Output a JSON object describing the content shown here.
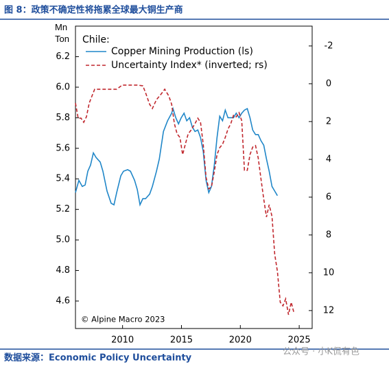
{
  "chart_data": {
    "type": "line",
    "title": "图 8：政策不确定性将拖累全球最大铜生产商",
    "source": "数据来源：Economic Policy Uncertainty",
    "watermark": "公众号 · 小K侃有色",
    "legend_title": "Chile:",
    "annotation": "© Alpine Macro 2023",
    "ylabel": "Mn Ton",
    "xlim": [
      2006,
      2026.1
    ],
    "xticks": [
      2010,
      2015,
      2020,
      2025
    ],
    "ylim": [
      4.42,
      6.4
    ],
    "yticks": [
      4.6,
      4.8,
      {
        "value": 5,
        "label": "5.0"
      },
      5.2,
      5.4,
      5.6,
      5.8,
      {
        "value": 6,
        "label": "6.0"
      },
      6.2
    ],
    "y2lim": [
      12.95,
      -3.05
    ],
    "y2ticks": [
      -2,
      0,
      2,
      4,
      6,
      8,
      10,
      12
    ],
    "series": [
      {
        "name": "Copper Mining Production (ls)",
        "color": "#1f86c8",
        "dash": "solid",
        "x": [
          2006,
          2006.29,
          2006.58,
          2006.82,
          2007.05,
          2007.28,
          2007.52,
          2007.75,
          2008.1,
          2008.33,
          2008.68,
          2009.03,
          2009.27,
          2009.5,
          2009.85,
          2010.08,
          2010.43,
          2010.67,
          2011.02,
          2011.25,
          2011.48,
          2011.72,
          2011.95,
          2012.3,
          2012.53,
          2012.88,
          2013.12,
          2013.47,
          2013.82,
          2014.17,
          2014.28,
          2014.52,
          2014.75,
          2014.98,
          2015.22,
          2015.45,
          2015.69,
          2015.92,
          2016.15,
          2016.39,
          2016.62,
          2016.85,
          2017.09,
          2017.32,
          2017.55,
          2017.79,
          2018.02,
          2018.25,
          2018.49,
          2018.72,
          2018.95,
          2019.19,
          2019.42,
          2019.65,
          2019.89,
          2020.12,
          2020.35,
          2020.59,
          2020.82,
          2021.05,
          2021.29,
          2021.52,
          2021.75,
          2021.99,
          2022.22,
          2022.45,
          2022.69,
          2022.92,
          2023.15
        ],
        "values": [
          5.31,
          5.39,
          5.35,
          5.36,
          5.45,
          5.49,
          5.57,
          5.54,
          5.51,
          5.45,
          5.32,
          5.24,
          5.23,
          5.31,
          5.42,
          5.45,
          5.46,
          5.45,
          5.39,
          5.33,
          5.23,
          5.27,
          5.27,
          5.3,
          5.35,
          5.45,
          5.53,
          5.71,
          5.78,
          5.83,
          5.86,
          5.8,
          5.76,
          5.8,
          5.83,
          5.78,
          5.8,
          5.74,
          5.71,
          5.72,
          5.67,
          5.58,
          5.39,
          5.31,
          5.35,
          5.49,
          5.67,
          5.81,
          5.78,
          5.85,
          5.8,
          5.8,
          5.8,
          5.83,
          5.8,
          5.83,
          5.85,
          5.86,
          5.8,
          5.72,
          5.69,
          5.69,
          5.65,
          5.62,
          5.53,
          5.45,
          5.35,
          5.32,
          5.29
        ]
      },
      {
        "name": "Uncertainty Index* (inverted; rs)",
        "color": "#c0272d",
        "dash": "dashed",
        "axis": "y2",
        "x": [
          2006,
          2006.23,
          2006.47,
          2006.7,
          2006.93,
          2007.17,
          2007.4,
          2007.63,
          2008.04,
          2008.92,
          2009.5,
          2009.97,
          2010.67,
          2011.25,
          2011.72,
          2011.95,
          2012.3,
          2012.53,
          2012.88,
          2013.23,
          2013.58,
          2013.93,
          2014.17,
          2014.4,
          2014.63,
          2014.87,
          2015.1,
          2015.33,
          2015.57,
          2015.8,
          2016.15,
          2016.39,
          2016.62,
          2016.85,
          2017.09,
          2017.32,
          2017.55,
          2017.79,
          2018.02,
          2018.25,
          2018.49,
          2018.72,
          2018.95,
          2019.19,
          2019.42,
          2019.65,
          2019.89,
          2020.12,
          2020.35,
          2020.59,
          2020.82,
          2021.05,
          2021.29,
          2021.52,
          2021.75,
          2021.99,
          2022.22,
          2022.45,
          2022.69,
          2022.92,
          2023.15,
          2023.39,
          2023.62,
          2023.85,
          2024.09,
          2024.32,
          2024.55
        ],
        "values": [
          1.02,
          1.82,
          1.82,
          2.04,
          1.75,
          1.02,
          0.65,
          0.29,
          0.29,
          0.29,
          0.29,
          0.07,
          0.07,
          0.07,
          0.11,
          0.47,
          1.09,
          1.31,
          0.84,
          0.58,
          0.29,
          0.65,
          1.09,
          2.11,
          2.65,
          2.84,
          3.75,
          3.2,
          2.65,
          2.47,
          2.11,
          1.82,
          2.04,
          3.2,
          4.95,
          5.56,
          5.45,
          4.65,
          3.75,
          3.38,
          3.2,
          2.84,
          2.4,
          2.11,
          1.67,
          1.75,
          1.53,
          1.96,
          4.58,
          4.58,
          3.75,
          3.35,
          3.27,
          3.93,
          5.02,
          6.11,
          7.05,
          6.4,
          7.02,
          9.02,
          9.93,
          11.56,
          11.75,
          11.38,
          12.22,
          11.56,
          12.11
        ]
      }
    ]
  }
}
